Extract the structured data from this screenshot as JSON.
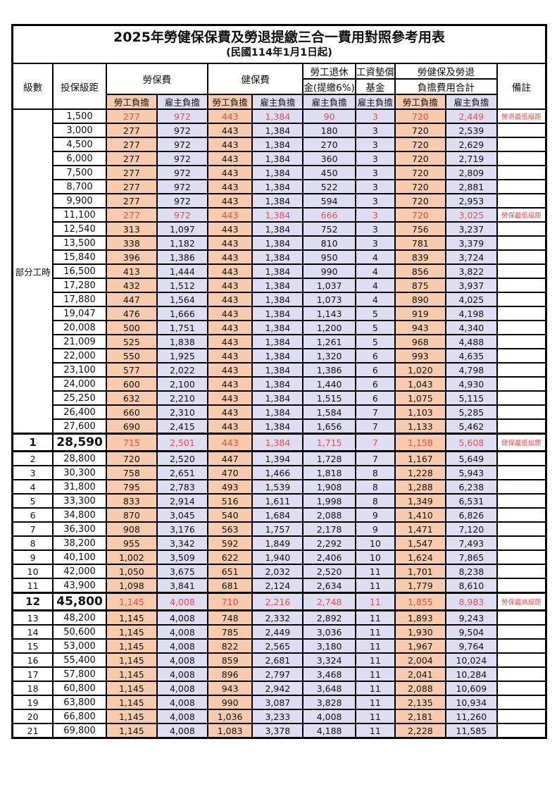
{
  "title": "2025年勞健保保費及勞退提繳三合一費用對照參考用表",
  "subtitle": "(民國114年1月1日起)",
  "header": {
    "level": "級數",
    "bracket": "投保級距",
    "labor_insurance": "勞保費",
    "health_insurance": "健保費",
    "pension_line1": "勞工退休",
    "pension_line2": "金(提繳6%)",
    "wage_fund_line1": "工資墊償",
    "wage_fund_line2": "基金",
    "total_line1": "勞健保及勞退",
    "total_line2": "負擔費用合計",
    "note": "備註",
    "employee_burden": "勞工負擔",
    "employer_burden": "雇主負擔"
  },
  "part_time_label": "部分工時",
  "colors": {
    "employee_col_bg": "#f8cbad",
    "employer_col_bg": "#dfddf1",
    "highlight_text": "#e8504d",
    "border": "#000000"
  },
  "rows": [
    {
      "lv": "",
      "br": "1,500",
      "a": "277",
      "b": "972",
      "c": "443",
      "d": "1,384",
      "e": "90",
      "f": "3",
      "g": "720",
      "h": "2,449",
      "n": "勞退最低級距",
      "red": true,
      "big": false
    },
    {
      "lv": "",
      "br": "3,000",
      "a": "277",
      "b": "972",
      "c": "443",
      "d": "1,384",
      "e": "180",
      "f": "3",
      "g": "720",
      "h": "2,539",
      "n": "",
      "red": false,
      "big": false
    },
    {
      "lv": "",
      "br": "4,500",
      "a": "277",
      "b": "972",
      "c": "443",
      "d": "1,384",
      "e": "270",
      "f": "3",
      "g": "720",
      "h": "2,629",
      "n": "",
      "red": false,
      "big": false
    },
    {
      "lv": "",
      "br": "6,000",
      "a": "277",
      "b": "972",
      "c": "443",
      "d": "1,384",
      "e": "360",
      "f": "3",
      "g": "720",
      "h": "2,719",
      "n": "",
      "red": false,
      "big": false
    },
    {
      "lv": "",
      "br": "7,500",
      "a": "277",
      "b": "972",
      "c": "443",
      "d": "1,384",
      "e": "450",
      "f": "3",
      "g": "720",
      "h": "2,809",
      "n": "",
      "red": false,
      "big": false
    },
    {
      "lv": "",
      "br": "8,700",
      "a": "277",
      "b": "972",
      "c": "443",
      "d": "1,384",
      "e": "522",
      "f": "3",
      "g": "720",
      "h": "2,881",
      "n": "",
      "red": false,
      "big": false
    },
    {
      "lv": "",
      "br": "9,900",
      "a": "277",
      "b": "972",
      "c": "443",
      "d": "1,384",
      "e": "594",
      "f": "3",
      "g": "720",
      "h": "2,953",
      "n": "",
      "red": false,
      "big": false
    },
    {
      "lv": "",
      "br": "11,100",
      "a": "277",
      "b": "972",
      "c": "443",
      "d": "1,384",
      "e": "666",
      "f": "3",
      "g": "720",
      "h": "3,025",
      "n": "勞保最低級距",
      "red": true,
      "big": false
    },
    {
      "lv": "",
      "br": "12,540",
      "a": "313",
      "b": "1,097",
      "c": "443",
      "d": "1,384",
      "e": "752",
      "f": "3",
      "g": "756",
      "h": "3,237",
      "n": "",
      "red": false,
      "big": false
    },
    {
      "lv": "",
      "br": "13,500",
      "a": "338",
      "b": "1,182",
      "c": "443",
      "d": "1,384",
      "e": "810",
      "f": "3",
      "g": "781",
      "h": "3,379",
      "n": "",
      "red": false,
      "big": false
    },
    {
      "lv": "",
      "br": "15,840",
      "a": "396",
      "b": "1,386",
      "c": "443",
      "d": "1,384",
      "e": "950",
      "f": "4",
      "g": "839",
      "h": "3,724",
      "n": "",
      "red": false,
      "big": false
    },
    {
      "lv": "",
      "br": "16,500",
      "a": "413",
      "b": "1,444",
      "c": "443",
      "d": "1,384",
      "e": "990",
      "f": "4",
      "g": "856",
      "h": "3,822",
      "n": "",
      "red": false,
      "big": false
    },
    {
      "lv": "",
      "br": "17,280",
      "a": "432",
      "b": "1,512",
      "c": "443",
      "d": "1,384",
      "e": "1,037",
      "f": "4",
      "g": "875",
      "h": "3,937",
      "n": "",
      "red": false,
      "big": false
    },
    {
      "lv": "",
      "br": "17,880",
      "a": "447",
      "b": "1,564",
      "c": "443",
      "d": "1,384",
      "e": "1,073",
      "f": "4",
      "g": "890",
      "h": "4,025",
      "n": "",
      "red": false,
      "big": false
    },
    {
      "lv": "",
      "br": "19,047",
      "a": "476",
      "b": "1,666",
      "c": "443",
      "d": "1,384",
      "e": "1,143",
      "f": "5",
      "g": "919",
      "h": "4,198",
      "n": "",
      "red": false,
      "big": false
    },
    {
      "lv": "",
      "br": "20,008",
      "a": "500",
      "b": "1,751",
      "c": "443",
      "d": "1,384",
      "e": "1,200",
      "f": "5",
      "g": "943",
      "h": "4,340",
      "n": "",
      "red": false,
      "big": false
    },
    {
      "lv": "",
      "br": "21,009",
      "a": "525",
      "b": "1,838",
      "c": "443",
      "d": "1,384",
      "e": "1,261",
      "f": "5",
      "g": "968",
      "h": "4,488",
      "n": "",
      "red": false,
      "big": false
    },
    {
      "lv": "",
      "br": "22,000",
      "a": "550",
      "b": "1,925",
      "c": "443",
      "d": "1,384",
      "e": "1,320",
      "f": "6",
      "g": "993",
      "h": "4,635",
      "n": "",
      "red": false,
      "big": false
    },
    {
      "lv": "",
      "br": "23,100",
      "a": "577",
      "b": "2,022",
      "c": "443",
      "d": "1,384",
      "e": "1,386",
      "f": "6",
      "g": "1,020",
      "h": "4,798",
      "n": "",
      "red": false,
      "big": false
    },
    {
      "lv": "",
      "br": "24,000",
      "a": "600",
      "b": "2,100",
      "c": "443",
      "d": "1,384",
      "e": "1,440",
      "f": "6",
      "g": "1,043",
      "h": "4,930",
      "n": "",
      "red": false,
      "big": false
    },
    {
      "lv": "",
      "br": "25,250",
      "a": "632",
      "b": "2,210",
      "c": "443",
      "d": "1,384",
      "e": "1,515",
      "f": "6",
      "g": "1,075",
      "h": "5,115",
      "n": "",
      "red": false,
      "big": false
    },
    {
      "lv": "",
      "br": "26,400",
      "a": "660",
      "b": "2,310",
      "c": "443",
      "d": "1,384",
      "e": "1,584",
      "f": "7",
      "g": "1,103",
      "h": "5,285",
      "n": "",
      "red": false,
      "big": false
    },
    {
      "lv": "",
      "br": "27,600",
      "a": "690",
      "b": "2,415",
      "c": "443",
      "d": "1,384",
      "e": "1,656",
      "f": "7",
      "g": "1,133",
      "h": "5,462",
      "n": "",
      "red": false,
      "big": false
    },
    {
      "lv": "1",
      "br": "28,590",
      "a": "715",
      "b": "2,501",
      "c": "443",
      "d": "1,384",
      "e": "1,715",
      "f": "7",
      "g": "1,158",
      "h": "5,608",
      "n": "健保最低級距",
      "red": true,
      "big": true
    },
    {
      "lv": "2",
      "br": "28,800",
      "a": "720",
      "b": "2,520",
      "c": "447",
      "d": "1,394",
      "e": "1,728",
      "f": "7",
      "g": "1,167",
      "h": "5,649",
      "n": "",
      "red": false,
      "big": false
    },
    {
      "lv": "3",
      "br": "30,300",
      "a": "758",
      "b": "2,651",
      "c": "470",
      "d": "1,466",
      "e": "1,818",
      "f": "8",
      "g": "1,228",
      "h": "5,943",
      "n": "",
      "red": false,
      "big": false
    },
    {
      "lv": "4",
      "br": "31,800",
      "a": "795",
      "b": "2,783",
      "c": "493",
      "d": "1,539",
      "e": "1,908",
      "f": "8",
      "g": "1,288",
      "h": "6,238",
      "n": "",
      "red": false,
      "big": false
    },
    {
      "lv": "5",
      "br": "33,300",
      "a": "833",
      "b": "2,914",
      "c": "516",
      "d": "1,611",
      "e": "1,998",
      "f": "8",
      "g": "1,349",
      "h": "6,531",
      "n": "",
      "red": false,
      "big": false
    },
    {
      "lv": "6",
      "br": "34,800",
      "a": "870",
      "b": "3,045",
      "c": "540",
      "d": "1,684",
      "e": "2,088",
      "f": "9",
      "g": "1,410",
      "h": "6,826",
      "n": "",
      "red": false,
      "big": false
    },
    {
      "lv": "7",
      "br": "36,300",
      "a": "908",
      "b": "3,176",
      "c": "563",
      "d": "1,757",
      "e": "2,178",
      "f": "9",
      "g": "1,471",
      "h": "7,120",
      "n": "",
      "red": false,
      "big": false
    },
    {
      "lv": "8",
      "br": "38,200",
      "a": "955",
      "b": "3,342",
      "c": "592",
      "d": "1,849",
      "e": "2,292",
      "f": "10",
      "g": "1,547",
      "h": "7,493",
      "n": "",
      "red": false,
      "big": false
    },
    {
      "lv": "9",
      "br": "40,100",
      "a": "1,002",
      "b": "3,509",
      "c": "622",
      "d": "1,940",
      "e": "2,406",
      "f": "10",
      "g": "1,624",
      "h": "7,865",
      "n": "",
      "red": false,
      "big": false
    },
    {
      "lv": "10",
      "br": "42,000",
      "a": "1,050",
      "b": "3,675",
      "c": "651",
      "d": "2,032",
      "e": "2,520",
      "f": "11",
      "g": "1,701",
      "h": "8,238",
      "n": "",
      "red": false,
      "big": false
    },
    {
      "lv": "11",
      "br": "43,900",
      "a": "1,098",
      "b": "3,841",
      "c": "681",
      "d": "2,124",
      "e": "2,634",
      "f": "11",
      "g": "1,779",
      "h": "8,610",
      "n": "",
      "red": false,
      "big": false
    },
    {
      "lv": "12",
      "br": "45,800",
      "a": "1,145",
      "b": "4,008",
      "c": "710",
      "d": "2,216",
      "e": "2,748",
      "f": "11",
      "g": "1,855",
      "h": "8,983",
      "n": "勞保最高級距",
      "red": true,
      "big": true
    },
    {
      "lv": "13",
      "br": "48,200",
      "a": "1,145",
      "b": "4,008",
      "c": "748",
      "d": "2,332",
      "e": "2,892",
      "f": "11",
      "g": "1,893",
      "h": "9,243",
      "n": "",
      "red": false,
      "big": false
    },
    {
      "lv": "14",
      "br": "50,600",
      "a": "1,145",
      "b": "4,008",
      "c": "785",
      "d": "2,449",
      "e": "3,036",
      "f": "11",
      "g": "1,930",
      "h": "9,504",
      "n": "",
      "red": false,
      "big": false
    },
    {
      "lv": "15",
      "br": "53,000",
      "a": "1,145",
      "b": "4,008",
      "c": "822",
      "d": "2,565",
      "e": "3,180",
      "f": "11",
      "g": "1,967",
      "h": "9,764",
      "n": "",
      "red": false,
      "big": false
    },
    {
      "lv": "16",
      "br": "55,400",
      "a": "1,145",
      "b": "4,008",
      "c": "859",
      "d": "2,681",
      "e": "3,324",
      "f": "11",
      "g": "2,004",
      "h": "10,024",
      "n": "",
      "red": false,
      "big": false
    },
    {
      "lv": "17",
      "br": "57,800",
      "a": "1,145",
      "b": "4,008",
      "c": "896",
      "d": "2,797",
      "e": "3,468",
      "f": "11",
      "g": "2,041",
      "h": "10,284",
      "n": "",
      "red": false,
      "big": false
    },
    {
      "lv": "18",
      "br": "60,800",
      "a": "1,145",
      "b": "4,008",
      "c": "943",
      "d": "2,942",
      "e": "3,648",
      "f": "11",
      "g": "2,088",
      "h": "10,609",
      "n": "",
      "red": false,
      "big": false
    },
    {
      "lv": "19",
      "br": "63,800",
      "a": "1,145",
      "b": "4,008",
      "c": "990",
      "d": "3,087",
      "e": "3,828",
      "f": "11",
      "g": "2,135",
      "h": "10,934",
      "n": "",
      "red": false,
      "big": false
    },
    {
      "lv": "20",
      "br": "66,800",
      "a": "1,145",
      "b": "4,008",
      "c": "1,036",
      "d": "3,233",
      "e": "4,008",
      "f": "11",
      "g": "2,181",
      "h": "11,260",
      "n": "",
      "red": false,
      "big": false
    },
    {
      "lv": "21",
      "br": "69,800",
      "a": "1,145",
      "b": "4,008",
      "c": "1,083",
      "d": "3,378",
      "e": "4,188",
      "f": "11",
      "g": "2,228",
      "h": "11,585",
      "n": "",
      "red": false,
      "big": false
    }
  ]
}
